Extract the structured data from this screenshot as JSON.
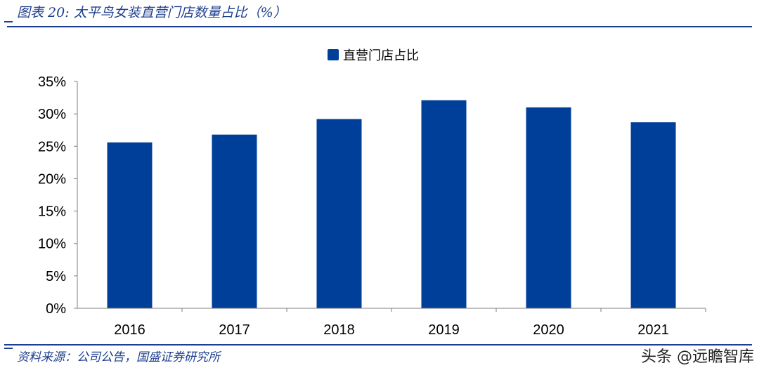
{
  "header": {
    "title": "图表 20: 太平鸟女装直营门店数量占比（%）"
  },
  "footer": {
    "source": "资料来源：公司公告，国盛证券研究所",
    "watermark": "头条 @远瞻智库"
  },
  "chart_data": {
    "type": "bar",
    "categories": [
      "2016",
      "2017",
      "2018",
      "2019",
      "2020",
      "2021"
    ],
    "series": [
      {
        "name": "直营门店占比",
        "values": [
          25.6,
          26.8,
          29.2,
          32.1,
          31.0,
          28.7
        ],
        "color": "#003f99"
      }
    ],
    "ylim": [
      0,
      35
    ],
    "yticks": [
      "0%",
      "5%",
      "10%",
      "15%",
      "20%",
      "25%",
      "30%",
      "35%"
    ],
    "ytick_values": [
      0,
      5,
      10,
      15,
      20,
      25,
      30,
      35
    ],
    "grid": false,
    "legend": "top-center"
  }
}
